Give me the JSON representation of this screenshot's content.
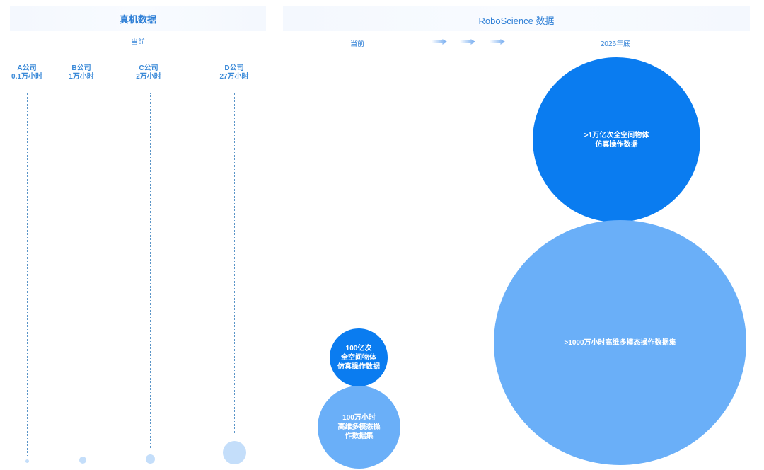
{
  "left_panel": {
    "title": "真机数据",
    "period": "当前",
    "companies": [
      {
        "name": "A公司",
        "value": "0.1万小时",
        "hours_wan": 0.1
      },
      {
        "name": "B公司",
        "value": "1万小时",
        "hours_wan": 1
      },
      {
        "name": "C公司",
        "value": "2万小时",
        "hours_wan": 2
      },
      {
        "name": "D公司",
        "value": "27万小时",
        "hours_wan": 27
      }
    ]
  },
  "right_panel": {
    "title": "RoboScience 数据",
    "period_now": "当前",
    "period_future": "2026年底",
    "now": {
      "sim": "100亿次\n全空间物体\n仿真操作数据",
      "real": "100万小时\n高维多模态操\n作数据集"
    },
    "future": {
      "sim": ">1万亿次全空间物体\n仿真操作数据",
      "real": ">1000万小时高维多模态操作数据集"
    }
  },
  "colors": {
    "dark_blue": "#0a7cf0",
    "light_blue": "#6aaff8",
    "pale_blue": "#c4defa",
    "text_blue": "#2e7fd6"
  }
}
